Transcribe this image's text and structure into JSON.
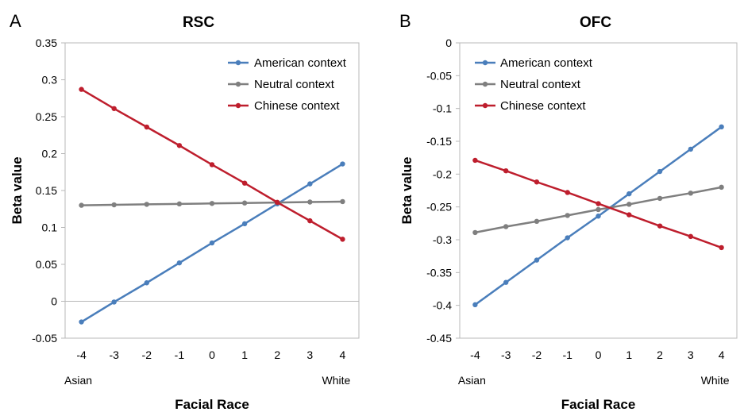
{
  "chart_data": [
    {
      "panel_letter": "A",
      "type": "line",
      "title": "RSC",
      "xlabel": "Facial Race",
      "ylabel": "Beta value",
      "x_end_labels": {
        "left": "Asian",
        "right": "White"
      },
      "x": [
        -4,
        -3,
        -2,
        -1,
        0,
        1,
        2,
        3,
        4
      ],
      "x_tick_labels": [
        "-4",
        "-3",
        "-2",
        "-1",
        "0",
        "1",
        "2",
        "3",
        "4"
      ],
      "y_ticks": [
        -0.05,
        0,
        0.05,
        0.1,
        0.15,
        0.2,
        0.25,
        0.3,
        0.35
      ],
      "y_tick_labels": [
        "-0.05",
        "0",
        "0.05",
        "0.1",
        "0.15",
        "0.2",
        "0.25",
        "0.3",
        "0.35"
      ],
      "ylim": [
        -0.05,
        0.35
      ],
      "grid": false,
      "legend_position": "top-right",
      "series": [
        {
          "name": "American context",
          "color": "#4A7EBB",
          "values": [
            -0.028,
            -0.001,
            0.025,
            0.052,
            0.079,
            0.105,
            0.132,
            0.159,
            0.186
          ]
        },
        {
          "name": "Neutral context",
          "color": "#7F7F7F",
          "values": [
            0.13,
            0.1306,
            0.1313,
            0.1319,
            0.1325,
            0.1331,
            0.1338,
            0.1344,
            0.135
          ]
        },
        {
          "name": "Chinese context",
          "color": "#BE1E2D",
          "values": [
            0.287,
            0.261,
            0.236,
            0.211,
            0.185,
            0.16,
            0.134,
            0.109,
            0.084
          ]
        }
      ]
    },
    {
      "panel_letter": "B",
      "type": "line",
      "title": "OFC",
      "xlabel": "Facial Race",
      "ylabel": "Beta value",
      "x_end_labels": {
        "left": "Asian",
        "right": "White"
      },
      "x": [
        -4,
        -3,
        -2,
        -1,
        0,
        1,
        2,
        3,
        4
      ],
      "x_tick_labels": [
        "-4",
        "-3",
        "-2",
        "-1",
        "0",
        "1",
        "2",
        "3",
        "4"
      ],
      "y_ticks": [
        -0.45,
        -0.4,
        -0.35,
        -0.3,
        -0.25,
        -0.2,
        -0.15,
        -0.1,
        -0.05,
        0
      ],
      "y_tick_labels": [
        "-0.45",
        "-0.4",
        "-0.35",
        "-0.3",
        "-0.25",
        "-0.2",
        "-0.15",
        "-0.1",
        "-0.05",
        "0"
      ],
      "ylim": [
        -0.45,
        0
      ],
      "grid": false,
      "legend_position": "top-right",
      "series": [
        {
          "name": "American context",
          "color": "#4A7EBB",
          "values": [
            -0.399,
            -0.365,
            -0.331,
            -0.297,
            -0.264,
            -0.23,
            -0.196,
            -0.162,
            -0.128
          ]
        },
        {
          "name": "Neutral context",
          "color": "#7F7F7F",
          "values": [
            -0.289,
            -0.28,
            -0.272,
            -0.263,
            -0.254,
            -0.246,
            -0.237,
            -0.229,
            -0.22
          ]
        },
        {
          "name": "Chinese context",
          "color": "#BE1E2D",
          "values": [
            -0.179,
            -0.195,
            -0.212,
            -0.228,
            -0.245,
            -0.262,
            -0.279,
            -0.295,
            -0.312
          ]
        }
      ]
    }
  ]
}
